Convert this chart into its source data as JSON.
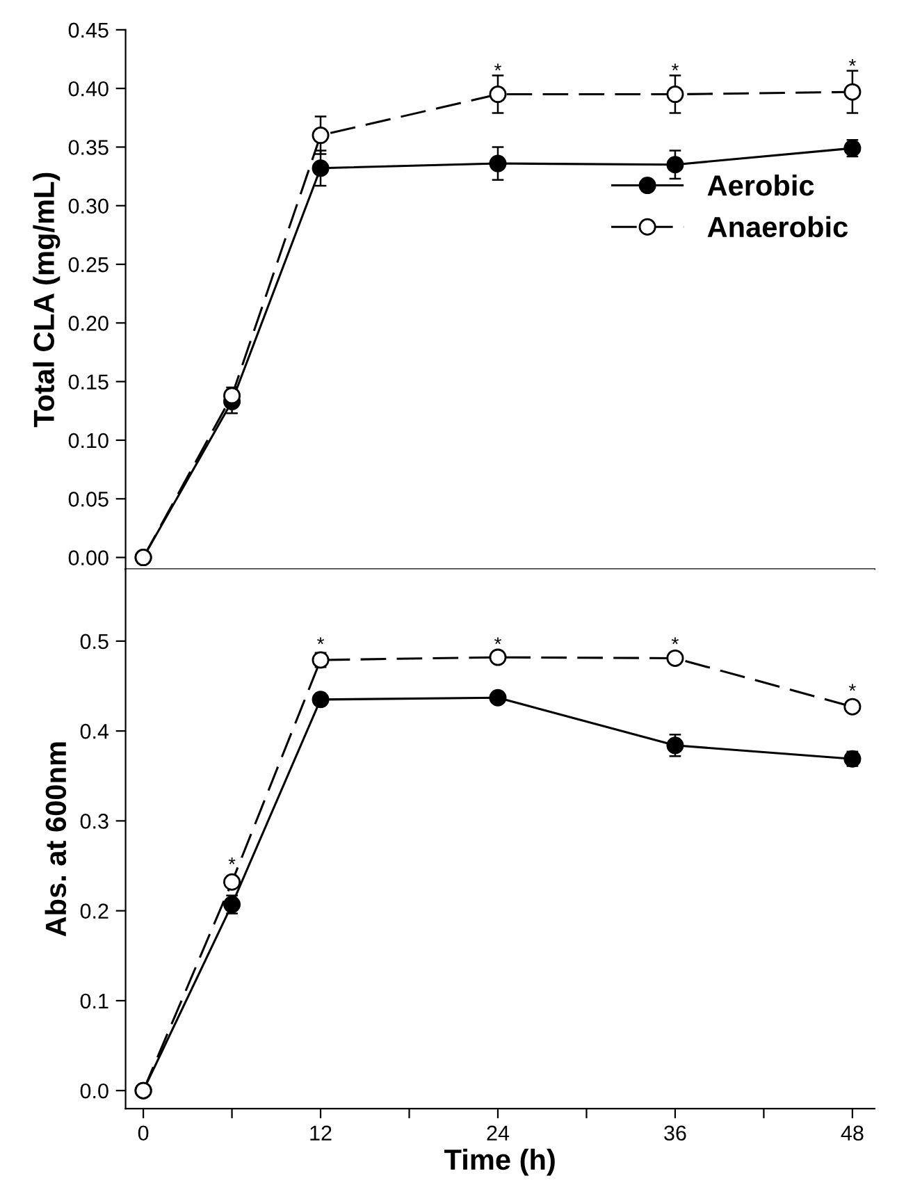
{
  "chart_data": [
    {
      "type": "line",
      "ylabel": "Total CLA (mg/mL)",
      "x": [
        0,
        6,
        12,
        24,
        36,
        48
      ],
      "xlim": [
        -1.2,
        49.5
      ],
      "xticks": [
        0,
        {
          "value": 6,
          "label": null
        },
        12,
        {
          "value": 18,
          "label": null
        },
        24,
        {
          "value": 30,
          "label": null
        },
        36,
        {
          "value": 42,
          "label": null
        },
        48
      ],
      "ylim": [
        -0.01,
        0.45
      ],
      "yticks": [
        {
          "value": 0,
          "label": "0.00"
        },
        {
          "value": 0.05,
          "label": "0.05"
        },
        {
          "value": 0.1,
          "label": "0.10"
        },
        {
          "value": 0.15,
          "label": "0.15"
        },
        {
          "value": 0.2,
          "label": "0.20"
        },
        {
          "value": 0.25,
          "label": "0.25"
        },
        {
          "value": 0.3,
          "label": "0.30"
        },
        {
          "value": 0.35,
          "label": "0.35"
        },
        {
          "value": 0.4,
          "label": "0.40"
        },
        {
          "value": 0.45,
          "label": "0.45"
        }
      ],
      "tick_labels": "y",
      "grid": false,
      "legend": "right",
      "marker": "circle",
      "series": [
        {
          "name": "Aerobic",
          "color": "#000000",
          "line_style": "solid",
          "values": [
            0,
            0.133,
            0.332,
            0.336,
            0.335,
            0.349
          ],
          "errors": [
            null,
            0.01,
            0.015,
            0.014,
            0.012,
            0.007
          ]
        },
        {
          "name": "Anaerobic",
          "color": "#ffffff",
          "line_style": "dashed",
          "values": [
            0,
            0.138,
            0.36,
            0.395,
            0.395,
            0.397
          ],
          "errors": [
            null,
            0.007,
            0.016,
            0.016,
            0.016,
            0.018
          ]
        }
      ],
      "annotations": [
        {
          "text": "*",
          "x": 24,
          "y": 0.414
        },
        {
          "text": "*",
          "x": 36,
          "y": 0.414
        },
        {
          "text": "*",
          "x": 48,
          "y": 0.418
        }
      ]
    },
    {
      "type": "line",
      "ylabel": "Abs. at 600nm",
      "xlabel": "Time (h)",
      "x": [
        0,
        6,
        12,
        24,
        36,
        48
      ],
      "xlim": [
        -1.2,
        49.5
      ],
      "xticks": [
        0,
        {
          "value": 6,
          "label": null
        },
        12,
        {
          "value": 18,
          "label": null
        },
        24,
        {
          "value": 30,
          "label": null
        },
        36,
        {
          "value": 42,
          "label": null
        },
        48
      ],
      "ylim": [
        -0.02,
        0.58
      ],
      "yticks": [
        {
          "value": 0,
          "label": "0.0"
        },
        {
          "value": 0.1,
          "label": "0.1"
        },
        {
          "value": 0.2,
          "label": "0.2"
        },
        {
          "value": 0.3,
          "label": "0.3"
        },
        {
          "value": 0.4,
          "label": "0.4"
        },
        {
          "value": 0.5,
          "label": "0.5"
        }
      ],
      "grid": false,
      "legend": false,
      "marker": "circle",
      "series": [
        {
          "color": "#000000",
          "line_style": "solid",
          "values": [
            0,
            0.207,
            0.435,
            0.437,
            0.384,
            0.369
          ],
          "errors": [
            null,
            0.01,
            null,
            null,
            0.012,
            0.008
          ]
        },
        {
          "color": "#ffffff",
          "line_style": "dashed",
          "values": [
            0,
            0.232,
            0.479,
            0.482,
            0.481,
            0.427
          ],
          "errors": [
            null,
            0.005,
            0.008,
            null,
            null,
            null
          ]
        }
      ],
      "annotations": [
        {
          "text": "*",
          "x": 6,
          "y": 0.25
        },
        {
          "text": "*",
          "x": 12,
          "y": 0.495
        },
        {
          "text": "*",
          "x": 24,
          "y": 0.495
        },
        {
          "text": "*",
          "x": 36,
          "y": 0.495
        },
        {
          "text": "*",
          "x": 48,
          "y": 0.443
        }
      ]
    }
  ]
}
